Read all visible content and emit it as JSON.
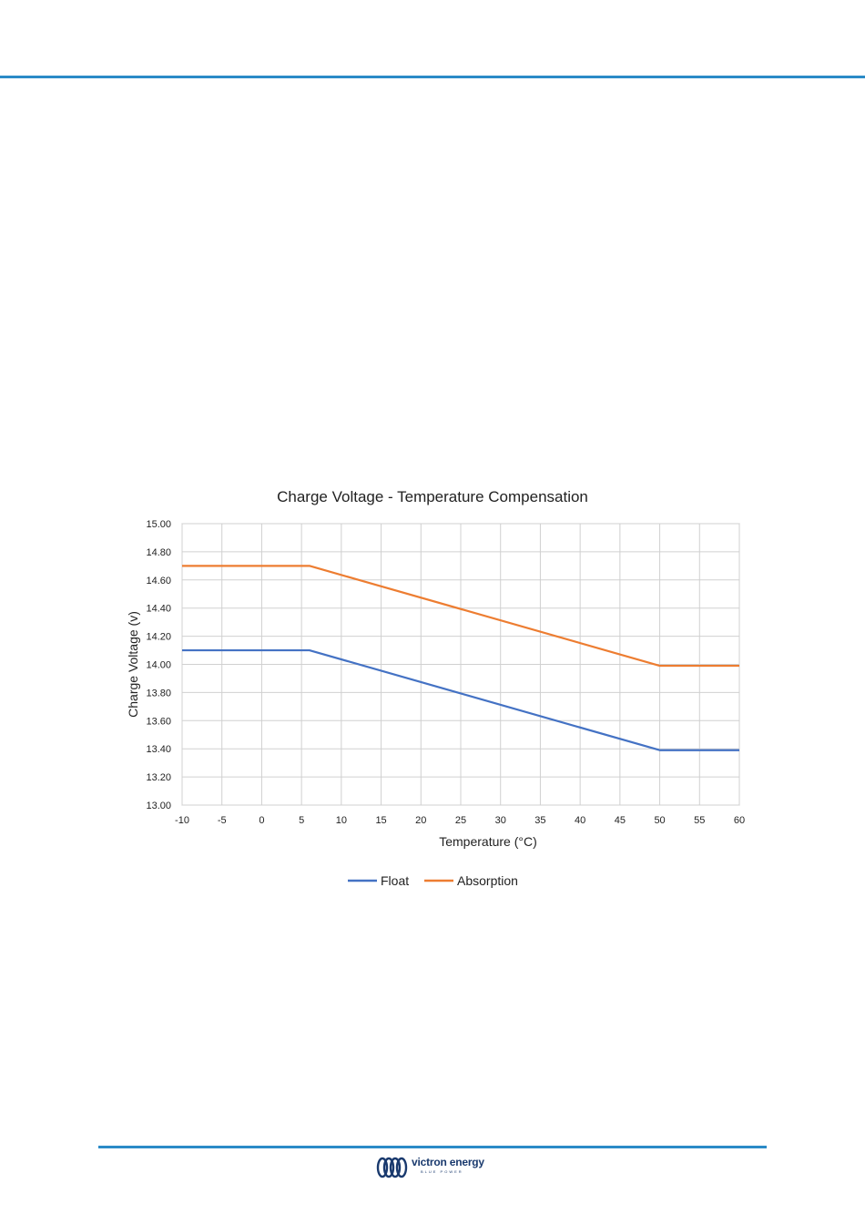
{
  "colors": {
    "accent": "#2b8bc7",
    "float": "#4472c4",
    "absorption": "#ed7d31",
    "grid": "#d0d0d0",
    "logo": "#1a3a6e"
  },
  "footer": {
    "brand": "victron energy",
    "tagline": "BLUE POWER",
    "logo_icon": "victron-logo-icon"
  },
  "chart_data": {
    "type": "line",
    "title": "Charge Voltage - Temperature Compensation",
    "xlabel": "Temperature (°C)",
    "ylabel": "Charge Voltage (v)",
    "xlim": [
      -10,
      60
    ],
    "ylim": [
      13.0,
      15.0
    ],
    "x_ticks": [
      "-10",
      "-5",
      "0",
      "5",
      "10",
      "15",
      "20",
      "25",
      "30",
      "35",
      "40",
      "45",
      "50",
      "55",
      "60"
    ],
    "y_ticks": [
      "13.00",
      "13.20",
      "13.40",
      "13.60",
      "13.80",
      "14.00",
      "14.20",
      "14.40",
      "14.60",
      "14.80",
      "15.00"
    ],
    "grid": true,
    "legend_position": "bottom",
    "series": [
      {
        "name": "Float",
        "color": "#4472c4",
        "x": [
          -10,
          6,
          50,
          60
        ],
        "values": [
          14.1,
          14.1,
          13.39,
          13.39
        ]
      },
      {
        "name": "Absorption",
        "color": "#ed7d31",
        "x": [
          -10,
          6,
          50,
          60
        ],
        "values": [
          14.7,
          14.7,
          13.99,
          13.99
        ]
      }
    ]
  }
}
